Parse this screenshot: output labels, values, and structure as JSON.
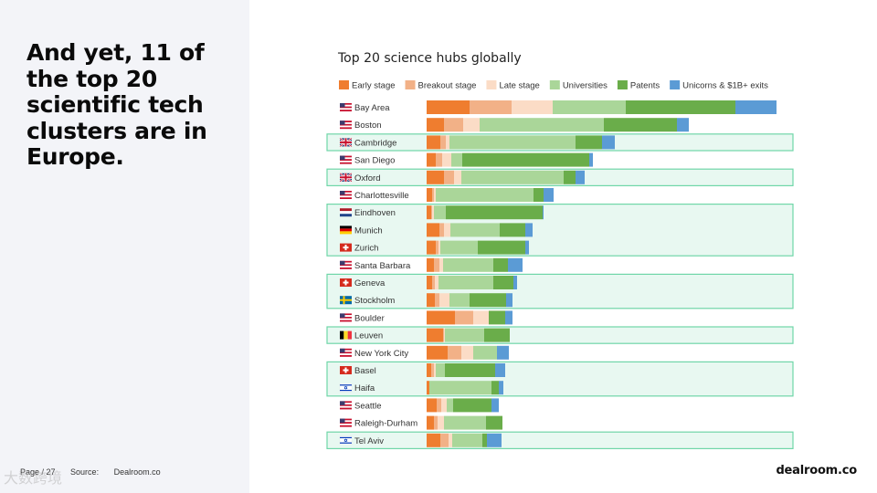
{
  "headline": "And yet, 11 of the top 20 scientific tech clusters are in Europe.",
  "footer": {
    "page": "Page / 27",
    "source_label": "Source:",
    "source_value": "Dealroom.co"
  },
  "brand": "dealroom.co",
  "watermark": "大数跨境",
  "colors": {
    "early": "#ef7d2f",
    "breakout": "#f2b187",
    "late": "#fbdcc6",
    "universities": "#aad699",
    "patents": "#6aad4a",
    "unicorns": "#5b9bd5",
    "highlight_border": "#6fd6a8",
    "highlight_fill": "#e8f8f1"
  },
  "chart_data": {
    "type": "bar",
    "orientation": "horizontal",
    "stacked": true,
    "title": "Top 20 science hubs globally",
    "xlabel": "",
    "ylabel": "",
    "legend_position": "top",
    "series": [
      {
        "key": "early",
        "name": "Early stage"
      },
      {
        "key": "breakout",
        "name": "Breakout stage"
      },
      {
        "key": "late",
        "name": "Late stage"
      },
      {
        "key": "universities",
        "name": "Universities"
      },
      {
        "key": "patents",
        "name": "Patents"
      },
      {
        "key": "unicorns",
        "name": "Unicorns & $1B+ exits"
      }
    ],
    "hubs": [
      {
        "name": "Bay Area",
        "flag": "us",
        "europe": false,
        "values": [
          47,
          46,
          45,
          80,
          120,
          45
        ]
      },
      {
        "name": "Boston",
        "flag": "us",
        "europe": false,
        "values": [
          19,
          21,
          18,
          136,
          80,
          13
        ]
      },
      {
        "name": "Cambridge",
        "flag": "gb",
        "europe": true,
        "values": [
          15,
          6,
          4,
          138,
          29,
          14
        ]
      },
      {
        "name": "San Diego",
        "flag": "us",
        "europe": false,
        "values": [
          10,
          7,
          10,
          12,
          139,
          4
        ]
      },
      {
        "name": "Oxford",
        "flag": "gb",
        "europe": true,
        "values": [
          19,
          11,
          8,
          112,
          13,
          10
        ]
      },
      {
        "name": "Charlottesville",
        "flag": "us",
        "europe": false,
        "values": [
          6,
          2,
          2,
          107,
          11,
          11
        ]
      },
      {
        "name": "Eindhoven",
        "flag": "nl",
        "europe": true,
        "values": [
          5,
          1,
          2,
          13,
          106,
          1
        ]
      },
      {
        "name": "Munich",
        "flag": "de",
        "europe": true,
        "values": [
          14,
          5,
          7,
          54,
          28,
          8
        ]
      },
      {
        "name": "Zurich",
        "flag": "ch",
        "europe": true,
        "values": [
          10,
          3,
          2,
          41,
          52,
          4
        ]
      },
      {
        "name": "Santa Barbara",
        "flag": "us",
        "europe": false,
        "values": [
          8,
          6,
          4,
          55,
          16,
          16
        ]
      },
      {
        "name": "Geneva",
        "flag": "ch",
        "europe": true,
        "values": [
          6,
          3,
          4,
          60,
          22,
          4
        ]
      },
      {
        "name": "Stockholm",
        "flag": "se",
        "europe": true,
        "values": [
          9,
          5,
          11,
          22,
          40,
          7
        ]
      },
      {
        "name": "Boulder",
        "flag": "us",
        "europe": false,
        "values": [
          31,
          20,
          17,
          0,
          18,
          8
        ]
      },
      {
        "name": "Leuven",
        "flag": "be",
        "europe": true,
        "values": [
          18,
          1,
          1,
          43,
          28,
          0
        ]
      },
      {
        "name": "New York City",
        "flag": "us",
        "europe": false,
        "values": [
          23,
          15,
          13,
          26,
          0,
          13
        ]
      },
      {
        "name": "Basel",
        "flag": "ch",
        "europe": true,
        "values": [
          5,
          3,
          2,
          10,
          55,
          11
        ]
      },
      {
        "name": "Haifa",
        "flag": "il",
        "europe": false,
        "highlight_with_previous": true,
        "values": [
          3,
          0,
          0,
          68,
          8,
          5
        ]
      },
      {
        "name": "Seattle",
        "flag": "us",
        "europe": false,
        "values": [
          11,
          5,
          6,
          7,
          42,
          8
        ]
      },
      {
        "name": "Raleigh-Durham",
        "flag": "us",
        "europe": false,
        "values": [
          8,
          4,
          7,
          46,
          18,
          0
        ]
      },
      {
        "name": "Tel Aviv",
        "flag": "il",
        "europe": false,
        "values": [
          15,
          9,
          4,
          33,
          5,
          16
        ]
      }
    ],
    "highlighted_groups": [
      [
        "Cambridge"
      ],
      [
        "Oxford"
      ],
      [
        "Eindhoven",
        "Munich",
        "Zurich"
      ],
      [
        "Geneva",
        "Stockholm"
      ],
      [
        "Leuven"
      ],
      [
        "Basel",
        "Haifa"
      ],
      [
        "Tel Aviv"
      ]
    ]
  }
}
